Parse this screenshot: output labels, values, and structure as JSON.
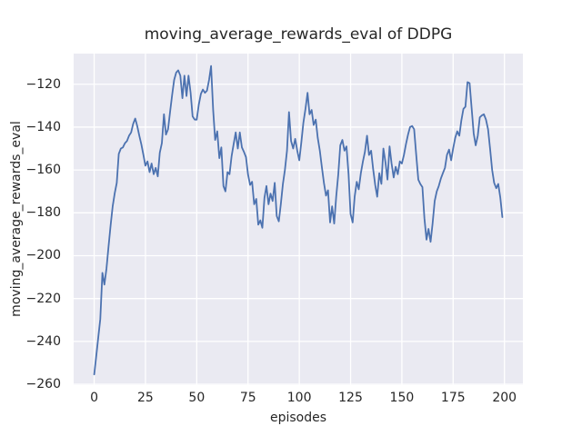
{
  "figure": {
    "title": "moving_average_rewards_eval of DDPG",
    "xlabel": "episodes",
    "ylabel": "moving_average_rewards_eval"
  },
  "chart_data": {
    "type": "line",
    "title": "moving_average_rewards_eval of DDPG",
    "xlabel": "episodes",
    "ylabel": "moving_average_rewards_eval",
    "xlim": [
      -10,
      209
    ],
    "ylim": [
      -260.4,
      -105.7
    ],
    "xticks": [
      0,
      25,
      50,
      75,
      100,
      125,
      150,
      175,
      200
    ],
    "yticks": [
      -120,
      -140,
      -160,
      -180,
      -200,
      -220,
      -240,
      -260
    ],
    "grid": true,
    "grid_color": "#ffffff",
    "plot_background": "#eaeaf2",
    "legend": "none",
    "series": [
      {
        "name": "moving_average_rewards_eval",
        "color": "#4C72B0",
        "x_start": 0,
        "x_step": 1,
        "values": [
          -255.4,
          -247,
          -238,
          -229.5,
          -208,
          -213.5,
          -206,
          -196,
          -186,
          -177,
          -171,
          -166,
          -152.5,
          -150,
          -149.5,
          -147.5,
          -146.5,
          -144,
          -142.5,
          -138.5,
          -136,
          -139.5,
          -144,
          -148,
          -153,
          -158,
          -156,
          -161,
          -157,
          -162,
          -159,
          -163,
          -152,
          -147.5,
          -134,
          -143.5,
          -141,
          -133,
          -125,
          -118,
          -114.5,
          -113.5,
          -116,
          -126.5,
          -116,
          -125.5,
          -116,
          -124,
          -135,
          -136.5,
          -136.5,
          -129.5,
          -124.5,
          -122.5,
          -124,
          -123,
          -118,
          -111.5,
          -132,
          -146,
          -142,
          -154.5,
          -149.5,
          -167.5,
          -170,
          -161,
          -162,
          -153.5,
          -148,
          -142.5,
          -150,
          -142.5,
          -149.5,
          -151.5,
          -154,
          -162,
          -167,
          -165.5,
          -176,
          -173.5,
          -185.5,
          -183.5,
          -187,
          -173,
          -167.5,
          -176,
          -171,
          -174.5,
          -166,
          -181.5,
          -184,
          -176,
          -166.5,
          -160,
          -151,
          -133,
          -146.5,
          -150,
          -145.5,
          -151,
          -155.5,
          -147,
          -138,
          -131.5,
          -124,
          -134,
          -132,
          -139,
          -136.5,
          -145,
          -151,
          -158.5,
          -166,
          -172,
          -169.5,
          -184.5,
          -177,
          -185,
          -172.5,
          -162,
          -148.5,
          -146,
          -151,
          -149,
          -162,
          -180.5,
          -184.5,
          -172.5,
          -165.5,
          -169,
          -161.5,
          -156,
          -151.5,
          -144,
          -153,
          -151,
          -159.5,
          -167,
          -172.5,
          -161.5,
          -166.5,
          -150,
          -156.5,
          -164.5,
          -149,
          -157,
          -163.5,
          -158.5,
          -162,
          -156,
          -157,
          -153,
          -148,
          -143.5,
          -140,
          -139.5,
          -141,
          -153,
          -164.5,
          -166.5,
          -168,
          -182.5,
          -192.5,
          -187.5,
          -193.5,
          -185,
          -174.5,
          -170,
          -167.5,
          -164,
          -161.5,
          -159,
          -153,
          -150.5,
          -155.5,
          -150,
          -145,
          -142,
          -144,
          -137,
          -131.5,
          -130.5,
          -119,
          -119.5,
          -131,
          -143,
          -148.5,
          -144,
          -135.5,
          -134.5,
          -134,
          -136.5,
          -141,
          -150,
          -160,
          -166,
          -168.5,
          -166.5,
          -173,
          -182
        ]
      }
    ]
  }
}
